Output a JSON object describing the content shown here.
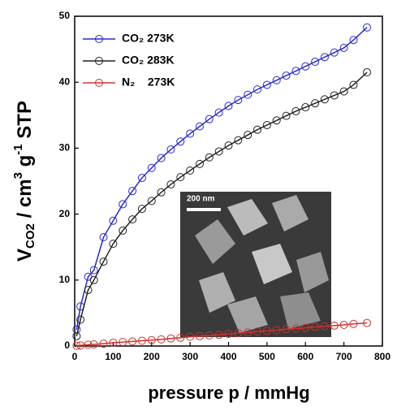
{
  "chart_data": {
    "type": "line",
    "x_label": "pressure p / mmHg",
    "y_label": [
      "V",
      "CO2",
      " / cm",
      "3",
      " g",
      "-1",
      " STP"
    ],
    "inset_label": "200 nm",
    "x": [
      5,
      15,
      35,
      50,
      75,
      100,
      125,
      150,
      175,
      200,
      225,
      250,
      275,
      300,
      325,
      350,
      375,
      400,
      425,
      450,
      475,
      500,
      525,
      550,
      575,
      600,
      625,
      650,
      675,
      700,
      725,
      760
    ],
    "series": [
      {
        "name": "CO₂ 273K",
        "color": "#2a2ad0",
        "values": [
          2.5,
          6,
          10.5,
          11.5,
          16.5,
          19,
          21.5,
          23.5,
          25.5,
          27,
          28.5,
          29.8,
          31,
          32.2,
          33.3,
          34.4,
          35.4,
          36.4,
          37.3,
          38.1,
          38.9,
          39.6,
          40.3,
          41,
          41.7,
          42.4,
          43.1,
          43.8,
          44.5,
          45.2,
          46.4,
          48.3
        ]
      },
      {
        "name": "CO₂ 283K",
        "color": "#222222",
        "values": [
          1.5,
          4,
          8.5,
          10,
          12.8,
          15.5,
          17.5,
          19.2,
          20.8,
          22,
          23.3,
          24.5,
          25.6,
          26.6,
          27.6,
          28.6,
          29.5,
          30.4,
          31.2,
          32,
          32.8,
          33.5,
          34.2,
          34.9,
          35.6,
          36.2,
          36.8,
          37.4,
          38,
          38.6,
          39.6,
          41.5
        ]
      },
      {
        "name": "N₂    273K",
        "color": "#d03030",
        "values": [
          0.05,
          0.1,
          0.2,
          0.25,
          0.35,
          0.5,
          0.6,
          0.7,
          0.8,
          0.9,
          1,
          1.15,
          1.25,
          1.4,
          1.5,
          1.6,
          1.7,
          1.85,
          1.95,
          2.05,
          2.2,
          2.3,
          2.4,
          2.55,
          2.65,
          2.75,
          2.9,
          3,
          3.1,
          3.2,
          3.35,
          3.5
        ]
      }
    ],
    "xlim": [
      0,
      800
    ],
    "xticks": [
      0,
      100,
      200,
      300,
      400,
      500,
      600,
      700,
      800
    ],
    "ylim": [
      0,
      50
    ],
    "yticks": [
      0,
      10,
      20,
      30,
      40,
      50
    ],
    "legend": "upper left"
  }
}
